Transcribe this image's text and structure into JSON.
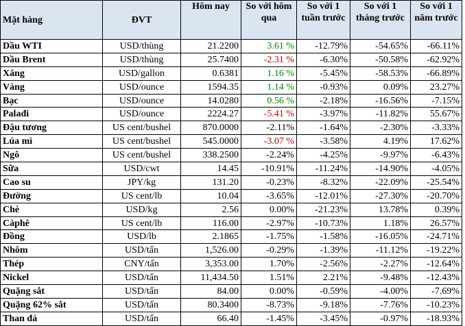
{
  "headers": [
    "Mặt hàng",
    "ĐVT",
    "Hôm nay",
    "So với hôm qua",
    "So với 1 tuần trước",
    "So với 1 tháng trước",
    "So với 1 năm trước"
  ],
  "colors": {
    "positive": "#008000",
    "negative": "#c00000",
    "header_bg": "#dbe5f1"
  },
  "rows": [
    {
      "item": "Dầu WTI",
      "unit": "USD/thùng",
      "today": "21.2200",
      "day": "3.61 %",
      "day_color": "pos",
      "week": "-12.79%",
      "month": "-54.65%",
      "year": "-66.11%"
    },
    {
      "item": "Dầu Brent",
      "unit": "USD/thùng",
      "today": "25.7400",
      "day": "-2.31 %",
      "day_color": "neg",
      "week": "-6.30%",
      "month": "-50.58%",
      "year": "-62.92%"
    },
    {
      "item": "Xăng",
      "unit": "USD/gallon",
      "today": "0.6381",
      "day": "1.16 %",
      "day_color": "pos",
      "week": "-5.45%",
      "month": "-58.53%",
      "year": "-66.89%"
    },
    {
      "item": "Vàng",
      "unit": "USD/ounce",
      "today": "1594.35",
      "day": "1.14 %",
      "day_color": "pos",
      "week": "-0.93%",
      "month": "0.09%",
      "year": "23.27%"
    },
    {
      "item": "Bạc",
      "unit": "USD/ounce",
      "today": "14.0280",
      "day": "0.56 %",
      "day_color": "pos",
      "week": "-2.18%",
      "month": "-16.56%",
      "year": "-7.15%"
    },
    {
      "item": "Palađi",
      "unit": "USD/ounce",
      "today": "2224.27",
      "day": "-5.41 %",
      "day_color": "neg",
      "week": "-3.97%",
      "month": "-11.82%",
      "year": "55.67%"
    },
    {
      "item": "Đậu tương",
      "unit": "US cent/bushel",
      "today": "870.0000",
      "day": "-2.11%",
      "day_color": "",
      "week": "-1.64%",
      "month": "-2.30%",
      "year": "-3.33%"
    },
    {
      "item": "Lúa mì",
      "unit": "US cent/bushel",
      "today": "545.0000",
      "day": "-3.07 %",
      "day_color": "neg",
      "week": "-3.58%",
      "month": "4.19%",
      "year": "17.62%"
    },
    {
      "item": "Ngô",
      "unit": "US cent/bushel",
      "today": "338.2500",
      "day": "-2.24%",
      "day_color": "",
      "week": "-4.25%",
      "month": "-9.97%",
      "year": "-6.43%"
    },
    {
      "item": "Sữa",
      "unit": "USD/cwt",
      "today": "14.45",
      "day": "-10.91%",
      "day_color": "",
      "week": "-11.24%",
      "month": "-14.90%",
      "year": "-4.05%"
    },
    {
      "item": "Cao su",
      "unit": "JPY/kg",
      "today": "131.20",
      "day": "-0.23%",
      "day_color": "",
      "week": "-8.32%",
      "month": "-22.09%",
      "year": "-25.54%"
    },
    {
      "item": "Đường",
      "unit": "US cent/lb",
      "today": "10.04",
      "day": "-3.65%",
      "day_color": "",
      "week": "-12.01%",
      "month": "-27.30%",
      "year": "-20.70%"
    },
    {
      "item": "Chè",
      "unit": "USD/kg",
      "today": "2.56",
      "day": "0.00%",
      "day_color": "",
      "week": "-21.23%",
      "month": "13.78%",
      "year": "0.39%"
    },
    {
      "item": "Càphê",
      "unit": "US cent/lb",
      "today": "116.00",
      "day": "-2.97%",
      "day_color": "",
      "week": "-10.73%",
      "month": "1.18%",
      "year": "26.57%"
    },
    {
      "item": "Đồng",
      "unit": "USD/lb",
      "today": "2.1865",
      "day": "-1.75%",
      "day_color": "",
      "week": "-1.58%",
      "month": "-16.05%",
      "year": "-24.71%"
    },
    {
      "item": "Nhôm",
      "unit": "USD/tấn",
      "today": "1,526.00",
      "day": "-0.29%",
      "day_color": "",
      "week": "-1.39%",
      "month": "-11.12%",
      "year": "-19.22%"
    },
    {
      "item": "Thép",
      "unit": "CNY/tấn",
      "today": "3,353.00",
      "day": "1.70%",
      "day_color": "",
      "week": "-2.56%",
      "month": "-2.27%",
      "year": "-12.64%"
    },
    {
      "item": "Nickel",
      "unit": "USD/tấn",
      "today": "11,434.50",
      "day": "1.51%",
      "day_color": "",
      "week": "2.21%",
      "month": "-9.48%",
      "year": "-12.43%"
    },
    {
      "item": "Quặng sắt",
      "unit": "USD/tấn",
      "today": "84.00",
      "day": "0.00%",
      "day_color": "",
      "week": "-0.59%",
      "month": "-4.00%",
      "year": "-7.69%"
    },
    {
      "item": "Quặng 62% sắt",
      "unit": "USD/tấn",
      "today": "80.3400",
      "day": "-8.73%",
      "day_color": "",
      "week": "-9.18%",
      "month": "-7.76%",
      "year": "-10.23%"
    },
    {
      "item": "Than đá",
      "unit": "USD/tấn",
      "today": "66.40",
      "day": "-1.45%",
      "day_color": "",
      "week": "-3.45%",
      "month": "-0.97%",
      "year": "-18.93%"
    }
  ]
}
